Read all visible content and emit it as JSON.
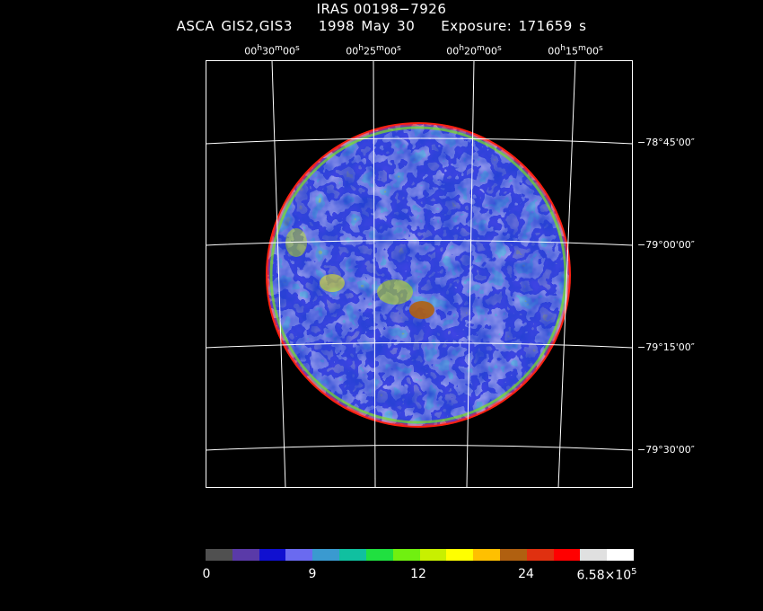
{
  "header": {
    "title": "IRAS 00198−7926",
    "subtitle": "ASCA GIS2,GIS3    1998 May 30    Exposure: 171659 s"
  },
  "ra_labels": [
    {
      "h": "00",
      "m": "30",
      "s": "00"
    },
    {
      "h": "00",
      "m": "25",
      "s": "00"
    },
    {
      "h": "00",
      "m": "20",
      "s": "00"
    },
    {
      "h": "00",
      "m": "15",
      "s": "00"
    }
  ],
  "dec_labels": [
    "−78°45'00″",
    "−79°00'00″",
    "−79°15'00″",
    "−79°30'00″"
  ],
  "colorbar": {
    "colors": [
      "#505050",
      "#5a3aa8",
      "#1010d0",
      "#6a6af0",
      "#3a9ad0",
      "#10c0a0",
      "#20e040",
      "#70f010",
      "#c8f000",
      "#ffff00",
      "#ffc000",
      "#b06010",
      "#e03010",
      "#ff0000",
      "#e0e0e0",
      "#ffffff"
    ],
    "labels": [
      "0",
      "9",
      "12",
      "24"
    ],
    "max_label": "6.58×10",
    "max_exp": "5"
  }
}
